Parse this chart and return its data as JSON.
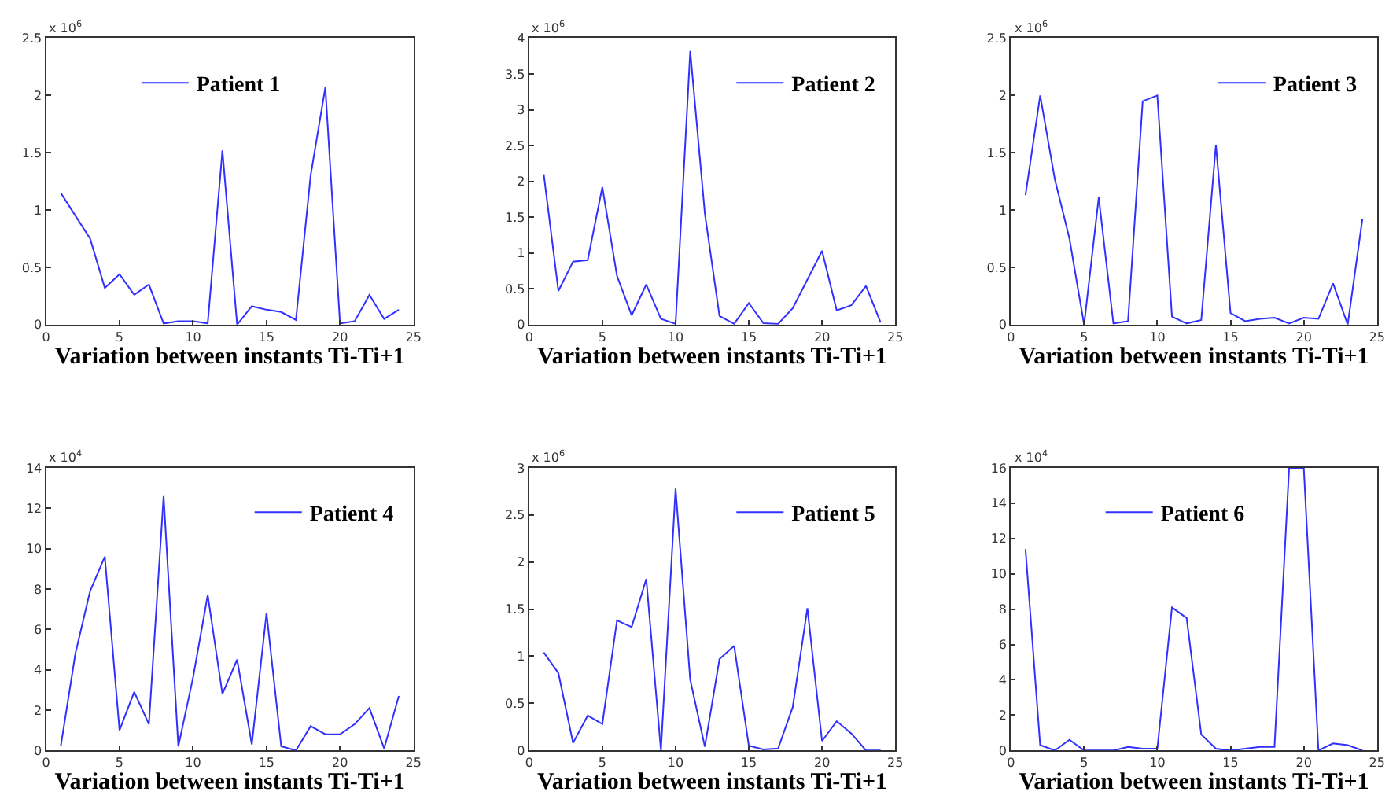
{
  "chart_data": [
    {
      "type": "line",
      "xlabel": "Variation between instants Ti-Ti+1",
      "annotations": [
        "x 10$^{6}$"
      ],
      "xlim": [
        0,
        25
      ],
      "xticks": [
        0,
        5,
        10,
        15,
        20,
        25
      ],
      "ylim": [
        0,
        2.5
      ],
      "yticks": [
        0,
        0.5,
        1,
        1.5,
        2,
        2.5
      ],
      "legend": "top",
      "x": [
        1,
        2,
        3,
        4,
        5,
        6,
        7,
        8,
        9,
        10,
        11,
        12,
        13,
        14,
        15,
        16,
        17,
        18,
        19,
        20,
        21,
        22,
        23,
        24
      ],
      "series": [
        {
          "name": "Patient 1",
          "color": "#3030ff",
          "values": [
            1.15,
            0.95,
            0.75,
            0.32,
            0.44,
            0.26,
            0.35,
            0.01,
            0.03,
            0.03,
            0.01,
            1.52,
            0.0,
            0.16,
            0.13,
            0.11,
            0.04,
            1.3,
            2.07,
            0.01,
            0.03,
            0.26,
            0.05,
            0.13
          ]
        }
      ]
    },
    {
      "type": "line",
      "xlabel": "Variation between instants Ti-Ti+1",
      "annotations": [
        "x 10$^{6}$"
      ],
      "xlim": [
        0,
        25
      ],
      "xticks": [
        0,
        5,
        10,
        15,
        20,
        25
      ],
      "ylim": [
        0,
        4
      ],
      "yticks": [
        0,
        0.5,
        1,
        1.5,
        2,
        2.5,
        3,
        3.5,
        4
      ],
      "legend": "top right",
      "x": [
        1,
        2,
        3,
        4,
        5,
        6,
        7,
        8,
        9,
        10,
        11,
        12,
        13,
        14,
        15,
        16,
        17,
        18,
        19,
        20,
        21,
        22,
        23,
        24
      ],
      "series": [
        {
          "name": "Patient 2",
          "color": "#3030ff",
          "values": [
            2.1,
            0.47,
            0.88,
            0.9,
            1.92,
            0.68,
            0.13,
            0.56,
            0.08,
            0.01,
            3.82,
            1.55,
            0.12,
            0.01,
            0.3,
            0.02,
            0.01,
            0.23,
            0.63,
            1.03,
            0.2,
            0.27,
            0.54,
            0.03
          ]
        }
      ]
    },
    {
      "type": "line",
      "xlabel": "Variation between instants Ti-Ti+1",
      "annotations": [
        "x 10$^{6}$"
      ],
      "xlim": [
        0,
        25
      ],
      "xticks": [
        0,
        5,
        10,
        15,
        20,
        25
      ],
      "ylim": [
        0,
        2.5
      ],
      "yticks": [
        0,
        0.5,
        1,
        1.5,
        2,
        2.5
      ],
      "legend": "top right",
      "x": [
        1,
        2,
        3,
        4,
        5,
        6,
        7,
        8,
        9,
        10,
        11,
        12,
        13,
        14,
        15,
        16,
        17,
        18,
        19,
        20,
        21,
        22,
        23,
        24
      ],
      "series": [
        {
          "name": "Patient 3",
          "color": "#3030ff",
          "values": [
            1.13,
            2.0,
            1.27,
            0.75,
            0.0,
            1.11,
            0.01,
            0.03,
            1.95,
            2.0,
            0.07,
            0.01,
            0.04,
            1.57,
            0.1,
            0.03,
            0.05,
            0.06,
            0.01,
            0.06,
            0.05,
            0.36,
            0.0,
            0.92
          ]
        }
      ]
    },
    {
      "type": "line",
      "xlabel": "Variation between instants Ti-Ti+1",
      "annotations": [
        "x 10$^{4}$"
      ],
      "xlim": [
        0,
        25
      ],
      "xticks": [
        0,
        5,
        10,
        15,
        20,
        25
      ],
      "ylim": [
        0,
        14
      ],
      "yticks": [
        0,
        2,
        4,
        6,
        8,
        10,
        12,
        14
      ],
      "legend": "top right",
      "x": [
        1,
        2,
        3,
        4,
        5,
        6,
        7,
        8,
        9,
        10,
        11,
        12,
        13,
        14,
        15,
        16,
        17,
        18,
        19,
        20,
        21,
        22,
        23,
        24
      ],
      "series": [
        {
          "name": "Patient 4",
          "color": "#3030ff",
          "values": [
            0.2,
            4.8,
            7.9,
            9.6,
            1.0,
            2.9,
            1.3,
            12.6,
            0.2,
            3.6,
            7.7,
            2.8,
            4.5,
            0.3,
            6.8,
            0.2,
            0.0,
            1.2,
            0.8,
            0.8,
            1.3,
            2.1,
            0.1,
            2.7
          ]
        }
      ]
    },
    {
      "type": "line",
      "xlabel": "Variation between instants Ti-Ti+1",
      "annotations": [
        "x 10$^{6}$"
      ],
      "xlim": [
        0,
        25
      ],
      "xticks": [
        0,
        5,
        10,
        15,
        20,
        25
      ],
      "ylim": [
        0,
        3
      ],
      "yticks": [
        0,
        0.5,
        1,
        1.5,
        2,
        2.5,
        3
      ],
      "legend": "top right",
      "x": [
        1,
        2,
        3,
        4,
        5,
        6,
        7,
        8,
        9,
        10,
        11,
        12,
        13,
        14,
        15,
        16,
        17,
        18,
        19,
        20,
        21,
        22,
        23,
        24
      ],
      "series": [
        {
          "name": "Patient 5",
          "color": "#3030ff",
          "values": [
            1.04,
            0.82,
            0.08,
            0.37,
            0.28,
            1.38,
            1.31,
            1.82,
            0.0,
            2.78,
            0.75,
            0.04,
            0.97,
            1.11,
            0.05,
            0.01,
            0.02,
            0.46,
            1.51,
            0.1,
            0.31,
            0.18,
            0.0,
            0.0
          ]
        }
      ]
    },
    {
      "type": "line",
      "xlabel": "Variation between instants Ti-Ti+1",
      "annotations": [
        "x 10$^{4}$"
      ],
      "xlim": [
        0,
        25
      ],
      "xticks": [
        0,
        5,
        10,
        15,
        20,
        25
      ],
      "ylim": [
        0,
        16
      ],
      "yticks": [
        0,
        2,
        4,
        6,
        8,
        10,
        12,
        14,
        16
      ],
      "legend": "top",
      "x": [
        1,
        2,
        3,
        4,
        5,
        6,
        7,
        8,
        9,
        10,
        11,
        12,
        13,
        14,
        15,
        16,
        17,
        18,
        19,
        20,
        21,
        22,
        23,
        24
      ],
      "series": [
        {
          "name": "Patient 6",
          "color": "#3030ff",
          "values": [
            11.4,
            0.3,
            0.0,
            0.6,
            0.0,
            0.0,
            0.0,
            0.2,
            0.1,
            0.1,
            8.1,
            7.5,
            0.9,
            0.1,
            0.0,
            0.1,
            0.2,
            0.2,
            16,
            16,
            0.0,
            0.4,
            0.3,
            0.0
          ]
        }
      ]
    }
  ]
}
